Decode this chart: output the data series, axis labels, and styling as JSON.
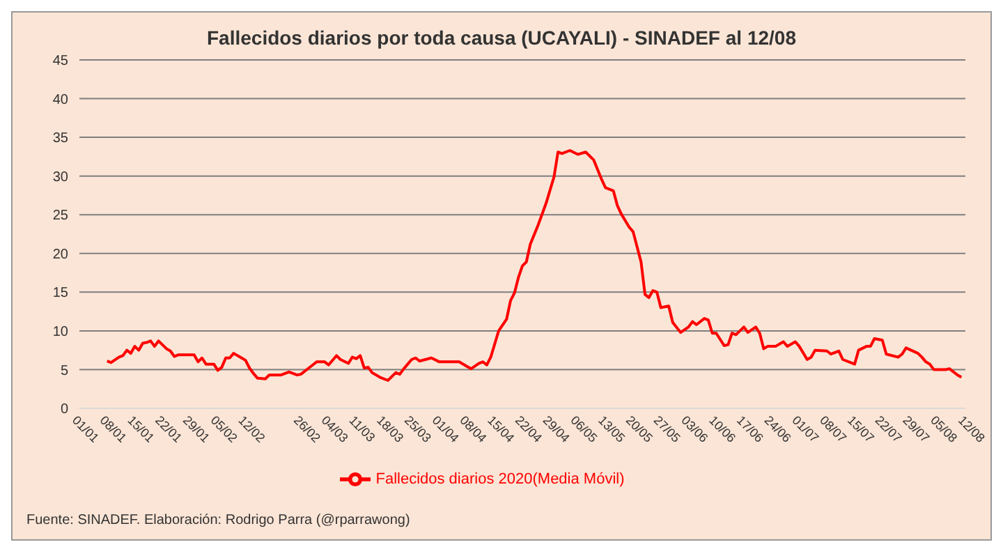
{
  "chart_data": {
    "type": "line",
    "title": "Fallecidos diarios por toda causa (UCAYALI) - SINADEF al 12/08",
    "annotations": [
      "Fuente: SINADEF. Elaboración: Rodrigo Parra (@rparrawong)"
    ],
    "x": [
      "--01-08",
      "--01-09",
      "--01-11",
      "--01-12",
      "--01-13",
      "--01-14",
      "--01-15",
      "--01-16",
      "--01-17",
      "--01-18",
      "--01-19",
      "--01-20",
      "--01-21",
      "--01-23",
      "--01-24",
      "--01-25",
      "--01-26",
      "--01-30",
      "--01-31",
      "--02-01",
      "--02-02",
      "--02-04",
      "--02-05",
      "--02-06",
      "--02-07",
      "--02-08",
      "--02-09",
      "--02-11",
      "--02-12",
      "--02-13",
      "--02-14",
      "--02-15",
      "--02-17",
      "--02-18",
      "--02-21",
      "--02-23",
      "--02-25",
      "--02-26",
      "--02-28",
      "--02-29",
      "--03-01",
      "--03-03",
      "--03-04",
      "--03-06",
      "--03-07",
      "--03-09",
      "--03-10",
      "--03-11",
      "--03-12",
      "--03-13",
      "--03-14",
      "--03-15",
      "--03-17",
      "--03-19",
      "--03-21",
      "--03-22",
      "--03-23",
      "--03-25",
      "--03-26",
      "--03-27",
      "--03-30",
      "--04-01",
      "--04-06",
      "--04-08",
      "--04-09",
      "--04-11",
      "--04-12",
      "--04-13",
      "--04-14",
      "--04-16",
      "--04-18",
      "--04-19",
      "--04-20",
      "--04-21",
      "--04-22",
      "--04-23",
      "--04-24",
      "--04-26",
      "--04-28",
      "--04-30",
      "--05-01",
      "--05-02",
      "--05-04",
      "--05-06",
      "--05-08",
      "--05-10",
      "--05-12",
      "--05-13",
      "--05-15",
      "--05-16",
      "--05-17",
      "--05-19",
      "--05-20",
      "--05-22",
      "--05-23",
      "--05-24",
      "--05-25",
      "--05-26",
      "--05-27",
      "--05-29",
      "--05-30",
      "--06-01",
      "--06-03",
      "--06-04",
      "--06-05",
      "--06-07",
      "--06-08",
      "--06-09",
      "--06-10",
      "--06-12",
      "--06-13",
      "--06-14",
      "--06-15",
      "--06-17",
      "--06-18",
      "--06-20",
      "--06-21",
      "--06-22",
      "--06-23",
      "--06-25",
      "--06-27",
      "--06-28",
      "--06-30",
      "--07-01",
      "--07-03",
      "--07-04",
      "--07-05",
      "--07-08",
      "--07-09",
      "--07-11",
      "--07-12",
      "--07-15",
      "--07-16",
      "--07-18",
      "--07-19",
      "--07-20",
      "--07-22",
      "--07-23",
      "--07-26",
      "--07-27",
      "--07-28",
      "--07-31",
      "--08-01",
      "--08-02",
      "--08-03",
      "--08-04",
      "--08-07",
      "--08-08",
      "--08-10",
      "--08-11"
    ],
    "series": [
      {
        "name": "Fallecidos diarios 2020(Media Móvil)",
        "color": "#ff0000",
        "values": [
          6.1,
          5.9,
          6.6,
          6.8,
          7.5,
          7.1,
          8.0,
          7.5,
          8.4,
          8.5,
          8.7,
          8.0,
          8.7,
          7.7,
          7.4,
          6.7,
          6.9,
          6.9,
          6.0,
          6.5,
          5.7,
          5.7,
          4.9,
          5.3,
          6.5,
          6.5,
          7.1,
          6.5,
          6.2,
          5.2,
          4.5,
          3.9,
          3.8,
          4.3,
          4.3,
          4.7,
          4.3,
          4.4,
          5.2,
          5.6,
          6.0,
          6.0,
          5.6,
          6.8,
          6.3,
          5.8,
          6.6,
          6.4,
          6.8,
          5.2,
          5.3,
          4.6,
          4.0,
          3.6,
          4.6,
          4.4,
          5.1,
          6.3,
          6.5,
          6.1,
          6.5,
          6.0,
          6.0,
          5.4,
          5.1,
          5.8,
          6.0,
          5.6,
          6.6,
          10.0,
          11.5,
          13.9,
          14.9,
          16.9,
          18.4,
          18.9,
          21.2,
          23.7,
          26.5,
          29.9,
          33.1,
          32.9,
          33.3,
          32.8,
          33.1,
          32.1,
          29.6,
          28.5,
          28.1,
          26.2,
          25.1,
          23.4,
          22.8,
          18.9,
          14.7,
          14.3,
          15.2,
          15.0,
          13.0,
          13.2,
          11.1,
          9.8,
          10.5,
          11.2,
          10.8,
          11.6,
          11.4,
          9.7,
          9.7,
          8.1,
          8.2,
          9.7,
          9.5,
          10.5,
          9.8,
          10.5,
          9.7,
          7.7,
          8.0,
          8.0,
          8.6,
          8.0,
          8.6,
          8.0,
          6.3,
          6.6,
          7.5,
          7.4,
          7.0,
          7.4,
          6.3,
          5.7,
          7.5,
          8.0,
          8.0,
          9.0,
          8.8,
          7.0,
          6.6,
          7.0,
          7.8,
          7.1,
          6.6,
          6.0,
          5.7,
          5.0,
          5.0,
          5.1,
          4.3,
          4.0
        ]
      }
    ],
    "xlim": [
      "--01-01",
      "--08-12"
    ],
    "xticks": [
      {
        "value": "--01-01",
        "label": "01/01"
      },
      {
        "value": "--01-08",
        "label": "08/01"
      },
      {
        "value": "--01-15",
        "label": "15/01"
      },
      {
        "value": "--01-22",
        "label": "22/01"
      },
      {
        "value": "--01-29",
        "label": "29/01"
      },
      {
        "value": "--02-05",
        "label": "05/02"
      },
      {
        "value": "--02-12",
        "label": "12/02"
      },
      {
        "value": "--02-26",
        "label": "26/02"
      },
      {
        "value": "--03-04",
        "label": "04/03"
      },
      {
        "value": "--03-11",
        "label": "11/03"
      },
      {
        "value": "--03-18",
        "label": "18/03"
      },
      {
        "value": "--03-25",
        "label": "25/03"
      },
      {
        "value": "--04-01",
        "label": "01/04"
      },
      {
        "value": "--04-08",
        "label": "08/04"
      },
      {
        "value": "--04-15",
        "label": "15/04"
      },
      {
        "value": "--04-22",
        "label": "22/04"
      },
      {
        "value": "--04-29",
        "label": "29/04"
      },
      {
        "value": "--05-06",
        "label": "06/05"
      },
      {
        "value": "--05-13",
        "label": "13/05"
      },
      {
        "value": "--05-20",
        "label": "20/05"
      },
      {
        "value": "--05-27",
        "label": "27/05"
      },
      {
        "value": "--06-03",
        "label": "03/06"
      },
      {
        "value": "--06-10",
        "label": "10/06"
      },
      {
        "value": "--06-17",
        "label": "17/06"
      },
      {
        "value": "--06-24",
        "label": "24/06"
      },
      {
        "value": "--07-01",
        "label": "01/07"
      },
      {
        "value": "--07-08",
        "label": "08/07"
      },
      {
        "value": "--07-15",
        "label": "15/07"
      },
      {
        "value": "--07-22",
        "label": "22/07"
      },
      {
        "value": "--07-29",
        "label": "29/07"
      },
      {
        "value": "--08-05",
        "label": "05/08"
      },
      {
        "value": "--08-12",
        "label": "12/08"
      }
    ],
    "ylim": [
      0,
      45
    ],
    "yticks": [
      0,
      5,
      10,
      15,
      20,
      25,
      30,
      35,
      40,
      45
    ],
    "grid": "y",
    "legend": "bottom",
    "marker": "none",
    "line_style": "solid"
  }
}
